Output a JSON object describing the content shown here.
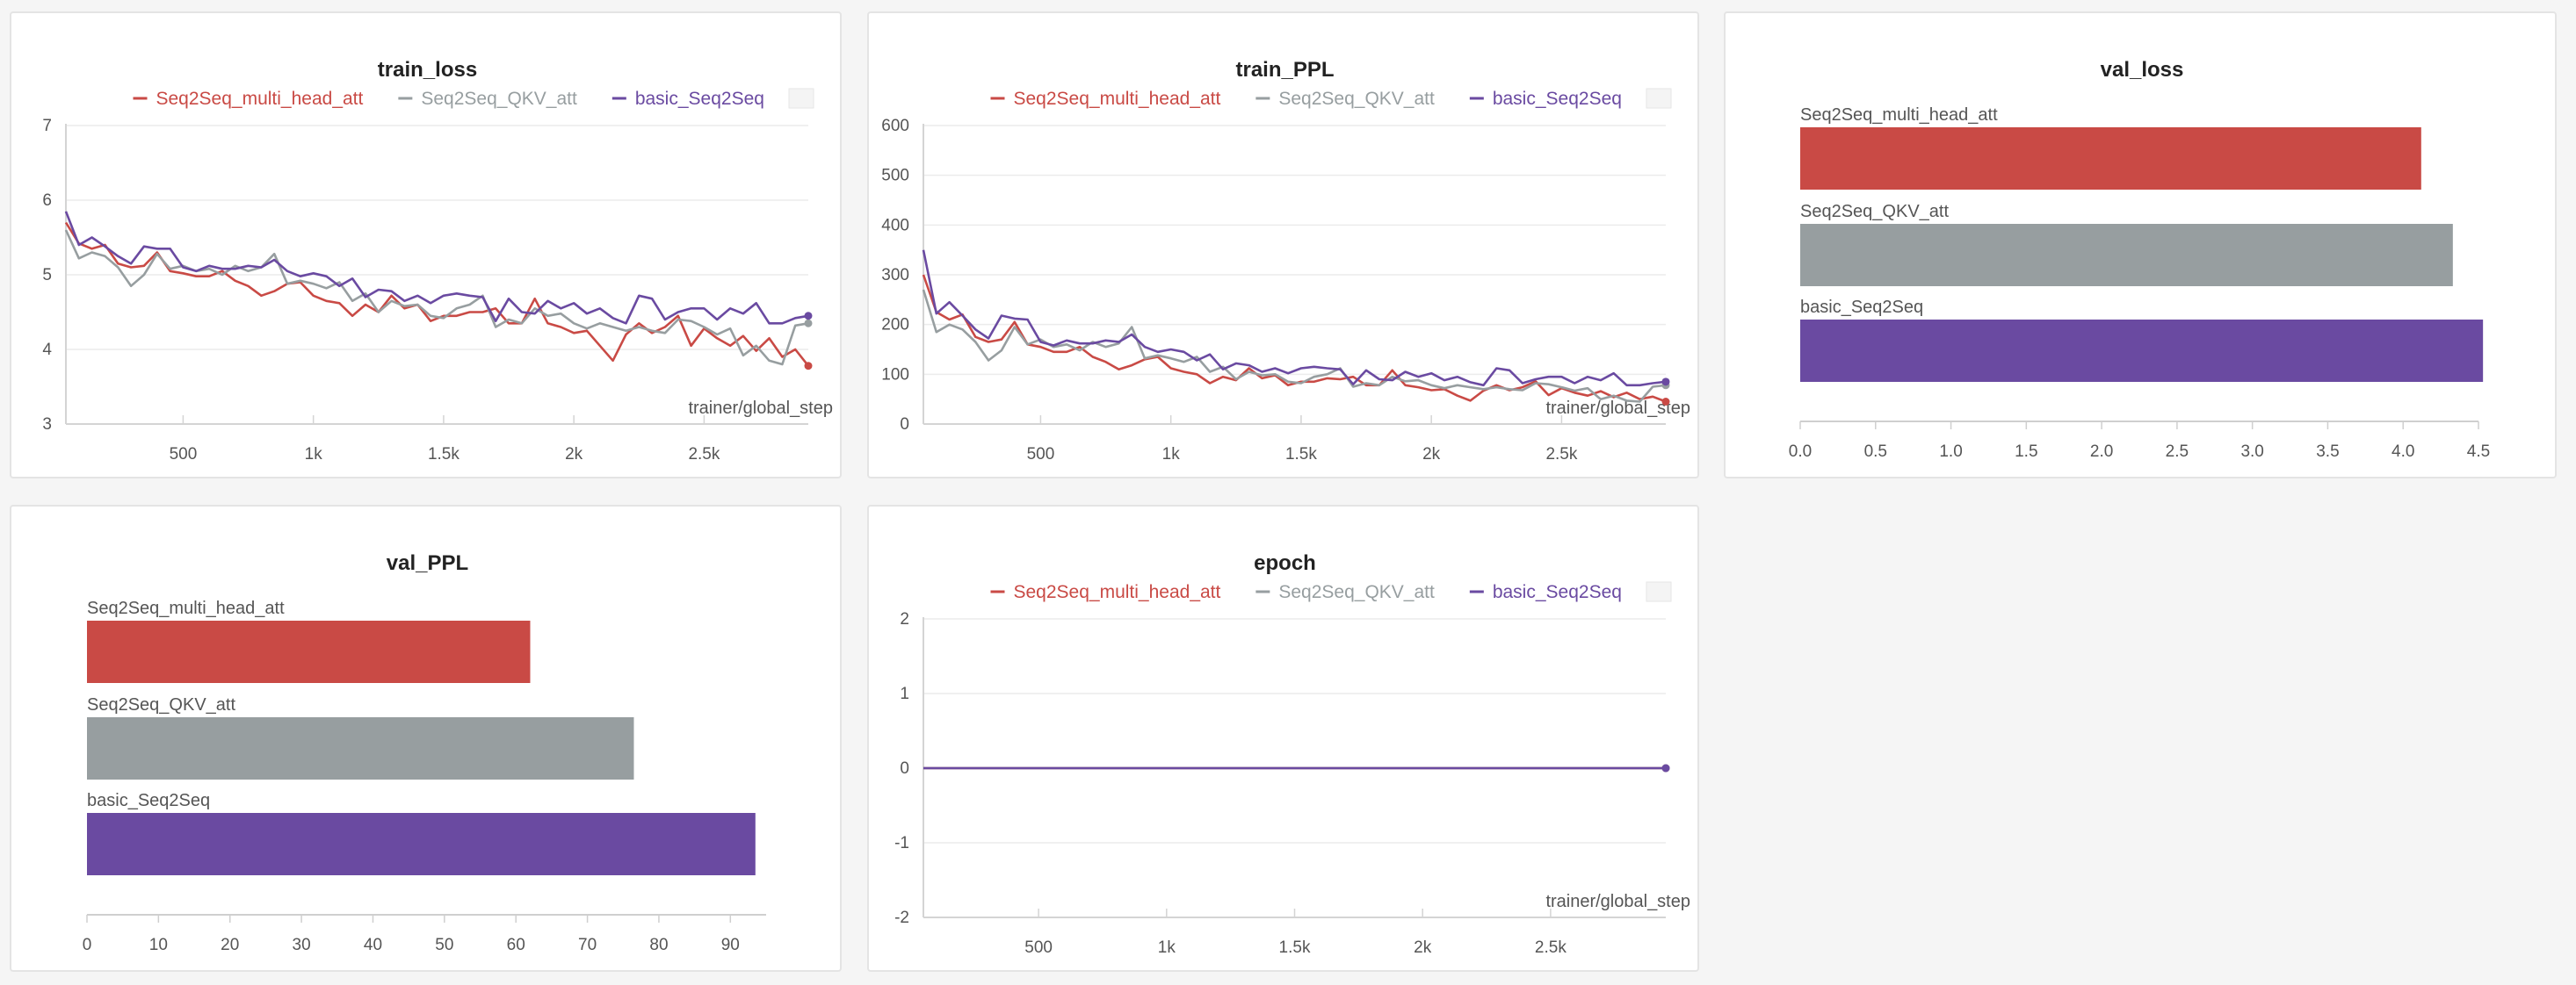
{
  "colors": {
    "Seq2Seq_multi_head_att": "#c94a45",
    "Seq2Seq_QKV_att": "#979ea0",
    "basic_Seq2Seq": "#6a4aa1"
  },
  "chart_data": [
    {
      "id": "train_loss",
      "type": "line",
      "title": "train_loss",
      "xlabel": "trainer/global_step",
      "ylabel": "",
      "xlim": [
        50,
        2900
      ],
      "ylim": [
        3,
        7
      ],
      "yticks": [
        3,
        4,
        5,
        6,
        7
      ],
      "xticks": [
        500,
        1000,
        1500,
        2000,
        2500
      ],
      "xtick_labels": [
        "500",
        "1k",
        "1.5k",
        "2k",
        "2.5k"
      ],
      "series": [
        {
          "name": "Seq2Seq_multi_head_att",
          "x": [
            50,
            100,
            150,
            200,
            250,
            300,
            350,
            400,
            450,
            500,
            550,
            600,
            650,
            700,
            750,
            800,
            850,
            900,
            950,
            1000,
            1050,
            1100,
            1150,
            1200,
            1250,
            1300,
            1350,
            1400,
            1450,
            1500,
            1550,
            1600,
            1650,
            1700,
            1750,
            1800,
            1850,
            1900,
            1950,
            2000,
            2050,
            2100,
            2150,
            2200,
            2250,
            2300,
            2350,
            2400,
            2450,
            2500,
            2550,
            2600,
            2650,
            2700,
            2750,
            2800,
            2850,
            2900
          ],
          "y": [
            5.7,
            5.42,
            5.35,
            5.4,
            5.15,
            5.1,
            5.12,
            5.3,
            5.05,
            5.02,
            4.98,
            4.98,
            5.05,
            4.92,
            4.85,
            4.72,
            4.78,
            4.88,
            4.9,
            4.72,
            4.65,
            4.62,
            4.45,
            4.6,
            4.5,
            4.72,
            4.55,
            4.6,
            4.38,
            4.45,
            4.45,
            4.5,
            4.5,
            4.55,
            4.35,
            4.35,
            4.68,
            4.35,
            4.3,
            4.22,
            4.25,
            4.05,
            3.85,
            4.2,
            4.35,
            4.22,
            4.3,
            4.45,
            4.05,
            4.28,
            4.15,
            4.05,
            4.18,
            3.98,
            4.15,
            3.9,
            4.0,
            3.78
          ]
        },
        {
          "name": "Seq2Seq_QKV_att",
          "x": [
            50,
            100,
            150,
            200,
            250,
            300,
            350,
            400,
            450,
            500,
            550,
            600,
            650,
            700,
            750,
            800,
            850,
            900,
            950,
            1000,
            1050,
            1100,
            1150,
            1200,
            1250,
            1300,
            1350,
            1400,
            1450,
            1500,
            1550,
            1600,
            1650,
            1700,
            1750,
            1800,
            1850,
            1900,
            1950,
            2000,
            2050,
            2100,
            2150,
            2200,
            2250,
            2300,
            2350,
            2400,
            2450,
            2500,
            2550,
            2600,
            2650,
            2700,
            2750,
            2800,
            2850,
            2900
          ],
          "y": [
            5.6,
            5.22,
            5.3,
            5.25,
            5.1,
            4.85,
            5.0,
            5.28,
            5.08,
            5.12,
            5.05,
            5.08,
            5.0,
            5.12,
            5.05,
            5.1,
            5.28,
            4.88,
            4.92,
            4.88,
            4.82,
            4.9,
            4.65,
            4.75,
            4.5,
            4.65,
            4.58,
            4.6,
            4.45,
            4.42,
            4.55,
            4.6,
            4.72,
            4.3,
            4.4,
            4.35,
            4.55,
            4.45,
            4.48,
            4.35,
            4.28,
            4.35,
            4.3,
            4.25,
            4.3,
            4.25,
            4.22,
            4.4,
            4.38,
            4.3,
            4.2,
            4.28,
            3.92,
            4.05,
            3.85,
            3.8,
            4.32,
            4.35
          ]
        },
        {
          "name": "basic_Seq2Seq",
          "x": [
            50,
            100,
            150,
            200,
            250,
            300,
            350,
            400,
            450,
            500,
            550,
            600,
            650,
            700,
            750,
            800,
            850,
            900,
            950,
            1000,
            1050,
            1100,
            1150,
            1200,
            1250,
            1300,
            1350,
            1400,
            1450,
            1500,
            1550,
            1600,
            1650,
            1700,
            1750,
            1800,
            1850,
            1900,
            1950,
            2000,
            2050,
            2100,
            2150,
            2200,
            2250,
            2300,
            2350,
            2400,
            2450,
            2500,
            2550,
            2600,
            2650,
            2700,
            2750,
            2800,
            2850,
            2900
          ],
          "y": [
            5.85,
            5.4,
            5.5,
            5.38,
            5.25,
            5.15,
            5.38,
            5.35,
            5.35,
            5.1,
            5.05,
            5.12,
            5.08,
            5.08,
            5.12,
            5.1,
            5.2,
            5.05,
            4.98,
            5.02,
            4.98,
            4.85,
            4.95,
            4.7,
            4.8,
            4.78,
            4.65,
            4.72,
            4.62,
            4.72,
            4.75,
            4.72,
            4.7,
            4.38,
            4.68,
            4.5,
            4.48,
            4.65,
            4.55,
            4.62,
            4.48,
            4.55,
            4.42,
            4.35,
            4.72,
            4.68,
            4.4,
            4.5,
            4.55,
            4.55,
            4.4,
            4.55,
            4.48,
            4.62,
            4.35,
            4.35,
            4.42,
            4.45
          ]
        }
      ]
    },
    {
      "id": "train_PPL",
      "type": "line",
      "title": "train_PPL",
      "xlabel": "trainer/global_step",
      "ylabel": "",
      "xlim": [
        50,
        2900
      ],
      "ylim": [
        0,
        600
      ],
      "yticks": [
        0,
        100,
        200,
        300,
        400,
        500,
        600
      ],
      "xticks": [
        500,
        1000,
        1500,
        2000,
        2500
      ],
      "xtick_labels": [
        "500",
        "1k",
        "1.5k",
        "2k",
        "2.5k"
      ],
      "series": [
        {
          "name": "Seq2Seq_multi_head_att",
          "x": [
            50,
            100,
            150,
            200,
            250,
            300,
            350,
            400,
            450,
            500,
            550,
            600,
            650,
            700,
            750,
            800,
            850,
            900,
            950,
            1000,
            1050,
            1100,
            1150,
            1200,
            1250,
            1300,
            1350,
            1400,
            1450,
            1500,
            1550,
            1600,
            1650,
            1700,
            1750,
            1800,
            1850,
            1900,
            1950,
            2000,
            2050,
            2100,
            2150,
            2200,
            2250,
            2300,
            2350,
            2400,
            2450,
            2500,
            2550,
            2600,
            2650,
            2700,
            2750,
            2800,
            2850,
            2900
          ],
          "y": [
            300,
            225,
            210,
            220,
            175,
            165,
            170,
            205,
            160,
            155,
            145,
            145,
            155,
            135,
            125,
            110,
            118,
            130,
            135,
            112,
            105,
            100,
            82,
            95,
            88,
            112,
            92,
            98,
            78,
            85,
            85,
            92,
            90,
            95,
            78,
            78,
            108,
            78,
            74,
            68,
            70,
            57,
            47,
            67,
            78,
            68,
            74,
            86,
            58,
            72,
            63,
            57,
            66,
            54,
            63,
            50,
            55,
            45
          ]
        },
        {
          "name": "Seq2Seq_QKV_att",
          "x": [
            50,
            100,
            150,
            200,
            250,
            300,
            350,
            400,
            450,
            500,
            550,
            600,
            650,
            700,
            750,
            800,
            850,
            900,
            950,
            1000,
            1050,
            1100,
            1150,
            1200,
            1250,
            1300,
            1350,
            1400,
            1450,
            1500,
            1550,
            1600,
            1650,
            1700,
            1750,
            1800,
            1850,
            1900,
            1950,
            2000,
            2050,
            2100,
            2150,
            2200,
            2250,
            2300,
            2350,
            2400,
            2450,
            2500,
            2550,
            2600,
            2650,
            2700,
            2750,
            2800,
            2850,
            2900
          ],
          "y": [
            270,
            185,
            200,
            190,
            165,
            128,
            148,
            195,
            160,
            170,
            155,
            160,
            148,
            165,
            155,
            162,
            195,
            132,
            138,
            132,
            125,
            135,
            105,
            115,
            90,
            105,
            98,
            100,
            85,
            82,
            95,
            100,
            112,
            75,
            82,
            78,
            95,
            86,
            88,
            78,
            72,
            78,
            74,
            70,
            74,
            70,
            68,
            82,
            80,
            74,
            67,
            72,
            50,
            57,
            47,
            45,
            75,
            78
          ]
        },
        {
          "name": "basic_Seq2Seq",
          "x": [
            50,
            100,
            150,
            200,
            250,
            300,
            350,
            400,
            450,
            500,
            550,
            600,
            650,
            700,
            750,
            800,
            850,
            900,
            950,
            1000,
            1050,
            1100,
            1150,
            1200,
            1250,
            1300,
            1350,
            1400,
            1450,
            1500,
            1550,
            1600,
            1650,
            1700,
            1750,
            1800,
            1850,
            1900,
            1950,
            2000,
            2050,
            2100,
            2150,
            2200,
            2250,
            2300,
            2350,
            2400,
            2450,
            2500,
            2550,
            2600,
            2650,
            2700,
            2750,
            2800,
            2850,
            2900
          ],
          "y": [
            350,
            222,
            245,
            218,
            190,
            172,
            218,
            212,
            210,
            165,
            158,
            168,
            162,
            162,
            168,
            165,
            180,
            155,
            145,
            150,
            145,
            128,
            140,
            110,
            122,
            118,
            105,
            112,
            102,
            112,
            115,
            112,
            110,
            80,
            108,
            90,
            88,
            105,
            95,
            102,
            88,
            95,
            84,
            78,
            112,
            108,
            82,
            90,
            95,
            95,
            82,
            95,
            88,
            102,
            78,
            78,
            82,
            85
          ]
        }
      ]
    },
    {
      "id": "val_loss",
      "type": "bar",
      "orientation": "horizontal",
      "title": "val_loss",
      "xlim": [
        0,
        4.5
      ],
      "xticks": [
        0,
        0.5,
        1,
        1.5,
        2,
        2.5,
        3,
        3.5,
        4,
        4.5
      ],
      "xtick_labels": [
        "0.0",
        "0.5",
        "1.0",
        "1.5",
        "2.0",
        "2.5",
        "3.0",
        "3.5",
        "4.0",
        "4.5"
      ],
      "categories": [
        "Seq2Seq_multi_head_att",
        "Seq2Seq_QKV_att",
        "basic_Seq2Seq"
      ],
      "values": [
        4.12,
        4.33,
        4.53
      ]
    },
    {
      "id": "val_PPL",
      "type": "bar",
      "orientation": "horizontal",
      "title": "val_PPL",
      "xlim": [
        0,
        95
      ],
      "xticks": [
        0,
        10,
        20,
        30,
        40,
        50,
        60,
        70,
        80,
        90
      ],
      "xtick_labels": [
        "0",
        "10",
        "20",
        "30",
        "40",
        "50",
        "60",
        "70",
        "80",
        "90"
      ],
      "categories": [
        "Seq2Seq_multi_head_att",
        "Seq2Seq_QKV_att",
        "basic_Seq2Seq"
      ],
      "values": [
        62,
        76.5,
        93.5
      ]
    },
    {
      "id": "epoch",
      "type": "line",
      "title": "epoch",
      "xlabel": "trainer/global_step",
      "ylabel": "",
      "xlim": [
        50,
        2950
      ],
      "ylim": [
        -2,
        2
      ],
      "yticks": [
        -2,
        -1,
        0,
        1,
        2
      ],
      "xticks": [
        500,
        1000,
        1500,
        2000,
        2500
      ],
      "xtick_labels": [
        "500",
        "1k",
        "1.5k",
        "2k",
        "2.5k"
      ],
      "series": [
        {
          "name": "Seq2Seq_multi_head_att",
          "x": [
            50,
            2950
          ],
          "y": [
            0,
            0
          ]
        },
        {
          "name": "Seq2Seq_QKV_att",
          "x": [
            50,
            2950
          ],
          "y": [
            0,
            0
          ]
        },
        {
          "name": "basic_Seq2Seq",
          "x": [
            50,
            2950
          ],
          "y": [
            0,
            0
          ]
        }
      ]
    }
  ]
}
